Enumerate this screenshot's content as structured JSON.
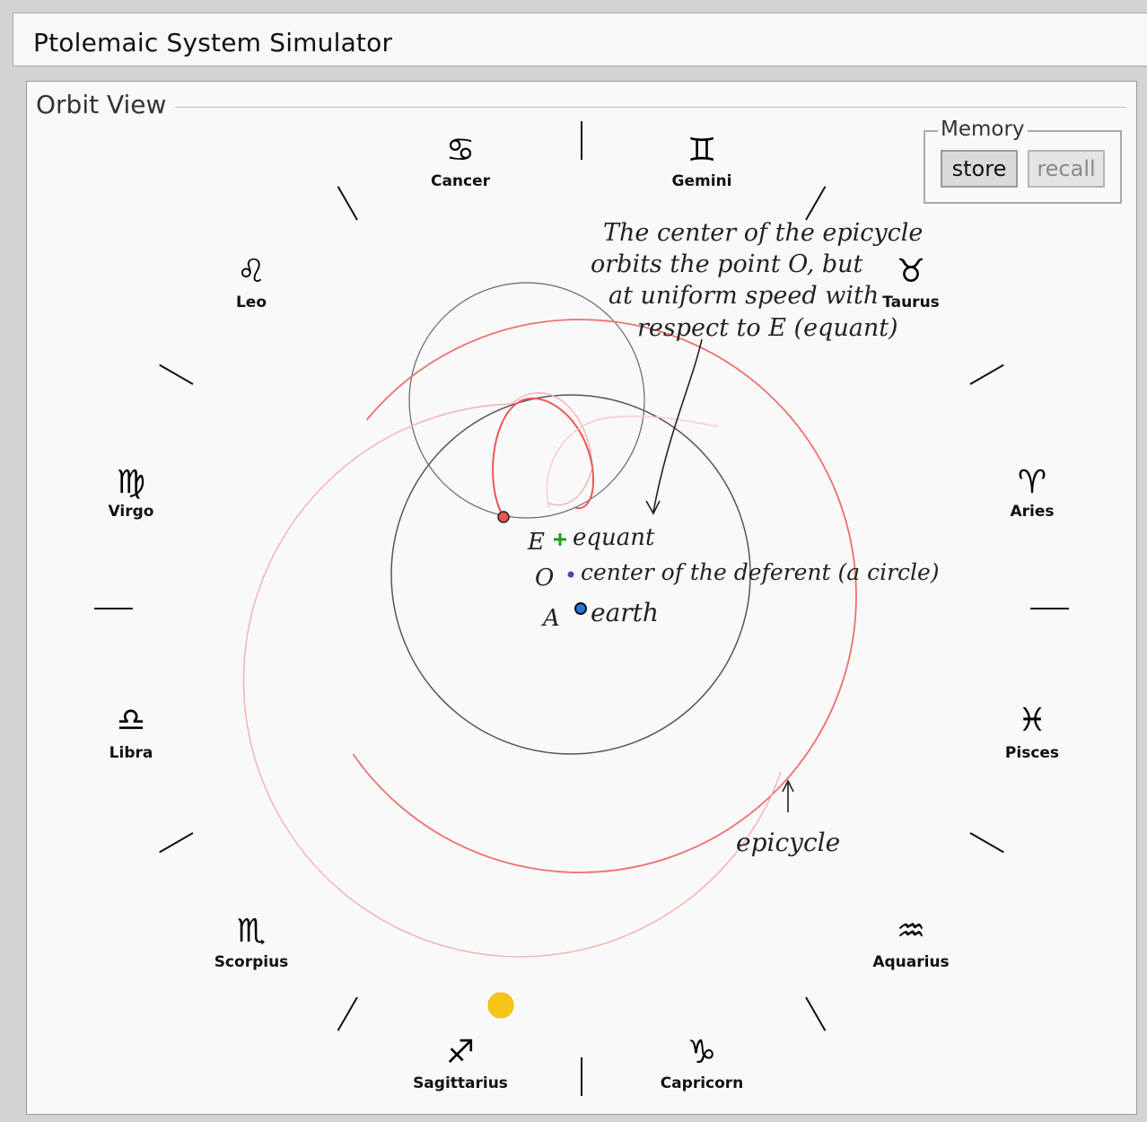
{
  "app": {
    "title": "Ptolemaic System Simulator"
  },
  "orbit_view": {
    "label": "Orbit View",
    "memory": {
      "label": "Memory",
      "store_label": "store",
      "recall_label": "recall",
      "recall_enabled": false
    },
    "zodiac": [
      {
        "name": "Cancer",
        "symbol": "♋"
      },
      {
        "name": "Gemini",
        "symbol": "♊"
      },
      {
        "name": "Leo",
        "symbol": "♌"
      },
      {
        "name": "Taurus",
        "symbol": "♉"
      },
      {
        "name": "Virgo",
        "symbol": "♍"
      },
      {
        "name": "Aries",
        "symbol": "♈"
      },
      {
        "name": "Libra",
        "symbol": "♎"
      },
      {
        "name": "Pisces",
        "symbol": "♓"
      },
      {
        "name": "Scorpius",
        "symbol": "♏"
      },
      {
        "name": "Aquarius",
        "symbol": "♒"
      },
      {
        "name": "Sagittarius",
        "symbol": "♐"
      },
      {
        "name": "Capricorn",
        "symbol": "♑"
      }
    ],
    "annotations": {
      "epicycle_note": [
        "The center of the epicycle",
        "orbits the point O, but",
        "at uniform speed with",
        "respect to E (equant)"
      ],
      "equant_label": "E",
      "equant_text": "equant",
      "center_label": "O",
      "center_text": "center of the deferent (a circle)",
      "earth_label": "A",
      "earth_text": "earth",
      "epicycle_label": "epicycle"
    },
    "colors": {
      "deferent": "#555555",
      "epicycle": "#555555",
      "planet_path": "#f06a6a",
      "planet": "#f05050",
      "equant": "#1aa31a",
      "center": "#5b3fb0",
      "earth": "#1e7bd8",
      "sun": "#f5c518"
    }
  }
}
